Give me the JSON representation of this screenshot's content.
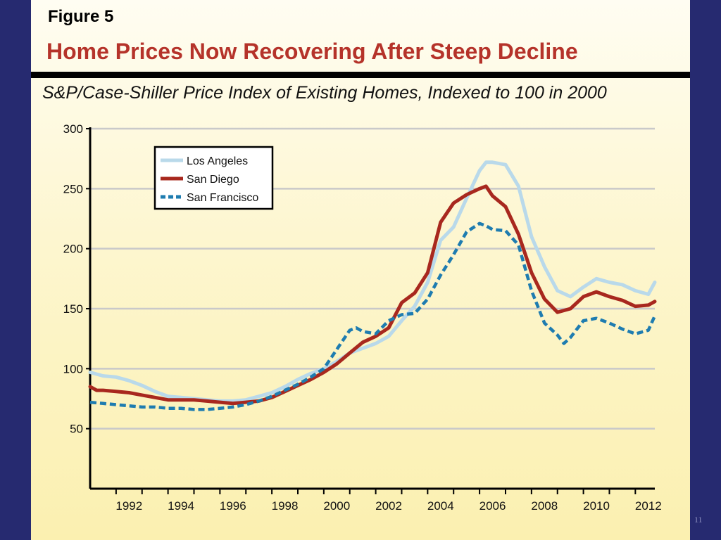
{
  "figure_label": "Figure 5",
  "title": "Home Prices Now Recovering After Steep Decline",
  "subtitle": "S&P/Case-Shiller Price Index of Existing Homes, Indexed to 100 in 2000",
  "slide_number": "11",
  "chart_data": {
    "type": "line",
    "title": "Home Prices Now Recovering After Steep Decline",
    "subtitle": "S&P/Case-Shiller Price Index of Existing Homes, Indexed to 100 in 2000",
    "xlabel": "",
    "ylabel": "",
    "xlim": [
      1991,
      2012.75
    ],
    "ylim": [
      0,
      300
    ],
    "yticks": [
      50,
      100,
      150,
      200,
      250,
      300
    ],
    "xticks": [
      1992,
      1994,
      1996,
      1998,
      2000,
      2002,
      2004,
      2006,
      2008,
      2010,
      2012
    ],
    "grid": true,
    "legend_position": "top-left",
    "series": [
      {
        "name": "Los Angeles",
        "color": "#b9d9ea",
        "style": "solid",
        "x": [
          1991.0,
          1991.5,
          1992.0,
          1992.5,
          1993.0,
          1993.5,
          1994.0,
          1994.5,
          1995.0,
          1995.5,
          1996.0,
          1996.5,
          1997.0,
          1997.5,
          1998.0,
          1998.5,
          1999.0,
          1999.5,
          2000.0,
          2000.5,
          2001.0,
          2001.5,
          2002.0,
          2002.5,
          2003.0,
          2003.5,
          2004.0,
          2004.5,
          2005.0,
          2005.5,
          2006.0,
          2006.25,
          2006.5,
          2007.0,
          2007.5,
          2008.0,
          2008.5,
          2009.0,
          2009.5,
          2010.0,
          2010.5,
          2011.0,
          2011.5,
          2012.0,
          2012.5,
          2012.75
        ],
        "values": [
          97,
          94,
          93,
          90,
          86,
          81,
          77,
          76,
          75,
          74,
          73,
          73,
          74,
          77,
          80,
          85,
          91,
          96,
          100,
          106,
          113,
          117,
          121,
          127,
          140,
          152,
          172,
          207,
          218,
          242,
          265,
          272,
          272,
          270,
          252,
          210,
          185,
          165,
          160,
          168,
          175,
          172,
          170,
          165,
          162,
          172
        ]
      },
      {
        "name": "San Diego",
        "color": "#a8281e",
        "style": "solid",
        "x": [
          1991.0,
          1991.25,
          1991.5,
          1992.0,
          1992.5,
          1993.0,
          1993.5,
          1994.0,
          1994.5,
          1995.0,
          1995.5,
          1996.0,
          1996.5,
          1997.0,
          1997.5,
          1998.0,
          1998.5,
          1999.0,
          1999.5,
          2000.0,
          2000.5,
          2001.0,
          2001.5,
          2002.0,
          2002.5,
          2003.0,
          2003.5,
          2004.0,
          2004.5,
          2005.0,
          2005.5,
          2006.0,
          2006.25,
          2006.5,
          2007.0,
          2007.5,
          2008.0,
          2008.5,
          2009.0,
          2009.5,
          2010.0,
          2010.5,
          2011.0,
          2011.5,
          2012.0,
          2012.5,
          2012.75
        ],
        "values": [
          85,
          82,
          82,
          81,
          80,
          78,
          76,
          74,
          74,
          74,
          73,
          72,
          71,
          72,
          73,
          76,
          81,
          86,
          91,
          97,
          104,
          113,
          122,
          127,
          134,
          155,
          163,
          180,
          222,
          238,
          245,
          250,
          252,
          244,
          235,
          212,
          180,
          158,
          147,
          150,
          160,
          164,
          160,
          157,
          152,
          153,
          156
        ]
      },
      {
        "name": "San Francisco",
        "color": "#1e7cb0",
        "style": "dashed",
        "x": [
          1991.0,
          1991.5,
          1992.0,
          1992.5,
          1993.0,
          1993.5,
          1994.0,
          1994.5,
          1995.0,
          1995.5,
          1996.0,
          1996.5,
          1997.0,
          1997.5,
          1998.0,
          1998.5,
          1999.0,
          1999.5,
          2000.0,
          2000.5,
          2001.0,
          2001.25,
          2001.5,
          2002.0,
          2002.5,
          2003.0,
          2003.5,
          2004.0,
          2004.5,
          2005.0,
          2005.5,
          2006.0,
          2006.25,
          2006.5,
          2007.0,
          2007.5,
          2008.0,
          2008.5,
          2009.0,
          2009.25,
          2009.5,
          2010.0,
          2010.5,
          2011.0,
          2011.5,
          2012.0,
          2012.5,
          2012.75
        ],
        "values": [
          72,
          71,
          70,
          69,
          68,
          68,
          67,
          67,
          66,
          66,
          67,
          68,
          70,
          73,
          77,
          82,
          87,
          93,
          100,
          116,
          132,
          134,
          131,
          129,
          140,
          145,
          146,
          158,
          178,
          195,
          214,
          221,
          219,
          216,
          215,
          203,
          165,
          138,
          128,
          121,
          126,
          140,
          142,
          138,
          133,
          129,
          132,
          144
        ]
      }
    ]
  }
}
